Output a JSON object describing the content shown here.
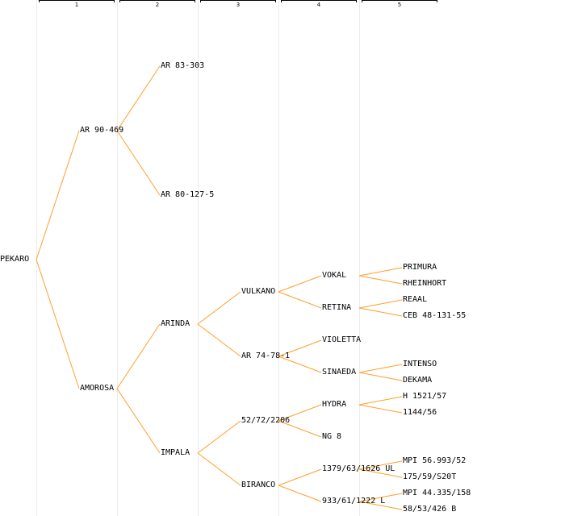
{
  "columns": [
    "1",
    "2",
    "3",
    "4",
    "5"
  ],
  "colors": {
    "edge": "#ff9f2a",
    "text": "#000000",
    "grid": "#ececec"
  },
  "nodes": {
    "root": "PEKARO",
    "g1": [
      "AR 90-469",
      "AMOROSA"
    ],
    "g2": [
      "AR 83-303",
      "AR 80-127-5",
      "ARINDA",
      "IMPALA"
    ],
    "g3": [
      "VULKANO",
      "AR 74-78-1",
      "52/72/2206",
      "BIRANCO"
    ],
    "g4": [
      "VOKAL",
      "RETINA",
      "VIOLETTA",
      "SINAEDA",
      "HYDRA",
      "NG 8",
      "1379/63/1626 UL",
      "933/61/1222 L"
    ],
    "g5": [
      "PRIMURA",
      "RHEINHORT",
      "REAAL",
      "CEB 48-131-55",
      "INTENSO",
      "DEKAMA",
      "H 1521/57",
      "1144/56",
      "MPI 56.993/52",
      "175/59/S20T",
      "MPI 44.335/158",
      "58/53/426 B"
    ]
  }
}
